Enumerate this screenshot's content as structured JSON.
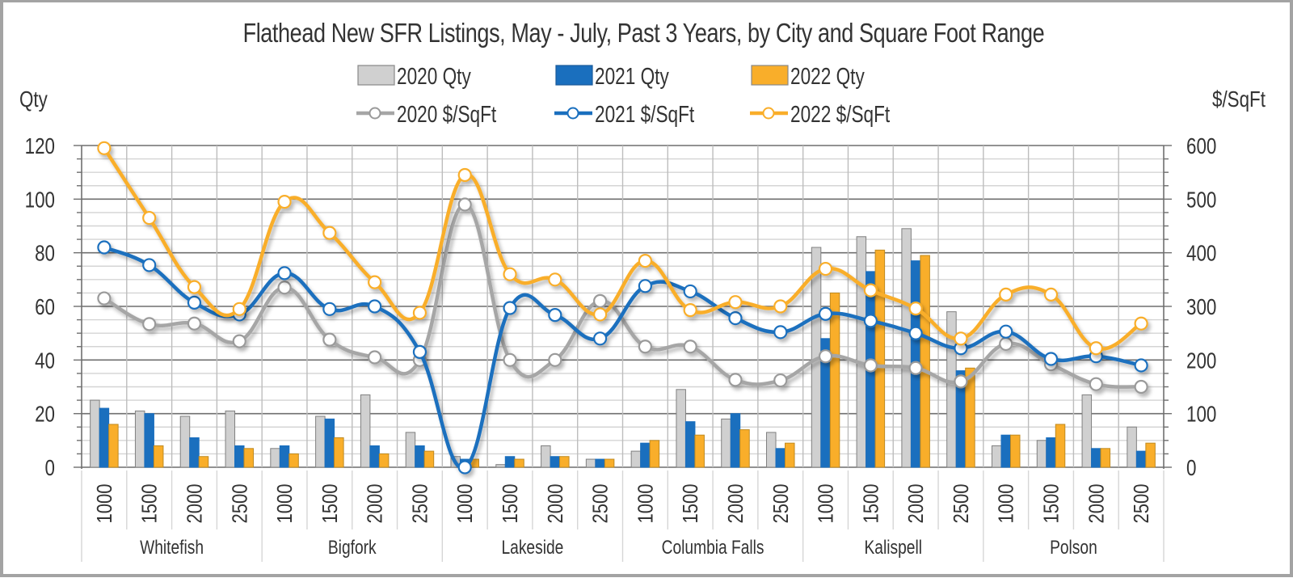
{
  "chart_data": {
    "type": "bar",
    "title": "Flathead New SFR Listings, May - July, Past 3 Years, by City and Square Foot Range",
    "ylabel": "Qty",
    "y2label": "$/SqFt",
    "ylim": [
      0,
      120
    ],
    "y2lim": [
      0,
      600
    ],
    "yticks": [
      0,
      20,
      40,
      60,
      80,
      100,
      120
    ],
    "y2ticks": [
      0,
      100,
      200,
      300,
      400,
      500,
      600
    ],
    "grid": true,
    "legend_position": "top-center",
    "groups": [
      "Whitefish",
      "Bigfork",
      "Lakeside",
      "Columbia Falls",
      "Kalispell",
      "Polson"
    ],
    "subcategories": [
      "1000",
      "1500",
      "2000",
      "2500"
    ],
    "bar_series": [
      {
        "name": "2020 Qty",
        "color": "#d0d0d0",
        "values": [
          25,
          21,
          19,
          21,
          7,
          19,
          27,
          13,
          4,
          1,
          8,
          3,
          6,
          29,
          18,
          13,
          82,
          86,
          89,
          58,
          8,
          10,
          27,
          15
        ]
      },
      {
        "name": "2021 Qty",
        "color": "#1a6fbe",
        "values": [
          22,
          20,
          11,
          8,
          8,
          18,
          8,
          8,
          3,
          4,
          4,
          3,
          9,
          17,
          20,
          7,
          48,
          73,
          77,
          36,
          12,
          11,
          7,
          6
        ]
      },
      {
        "name": "2022 Qty",
        "color": "#f9ae2a",
        "values": [
          16,
          8,
          4,
          7,
          5,
          11,
          5,
          6,
          3,
          3,
          4,
          3,
          10,
          12,
          14,
          9,
          65,
          81,
          79,
          37,
          12,
          16,
          7,
          9
        ]
      }
    ],
    "line_series": [
      {
        "name": "2020 $/SqFt",
        "color": "#a6a6a6",
        "axis": "right",
        "values": [
          315,
          267,
          268,
          235,
          335,
          238,
          205,
          200,
          490,
          200,
          200,
          310,
          225,
          225,
          163,
          162,
          207,
          190,
          185,
          160,
          230,
          192,
          155,
          150
        ]
      },
      {
        "name": "2021 $/SqFt",
        "color": "#1a6fbe",
        "axis": "right",
        "values": [
          410,
          377,
          307,
          285,
          362,
          295,
          300,
          215,
          0,
          297,
          284,
          240,
          338,
          328,
          278,
          252,
          286,
          273,
          250,
          222,
          253,
          202,
          207,
          190
        ]
      },
      {
        "name": "2022 $/SqFt",
        "color": "#f9ae2a",
        "axis": "right",
        "values": [
          595,
          465,
          336,
          295,
          495,
          437,
          345,
          288,
          545,
          360,
          350,
          285,
          385,
          293,
          308,
          300,
          370,
          330,
          296,
          240,
          322,
          322,
          222,
          268
        ]
      }
    ]
  },
  "legend": {
    "items": [
      {
        "label": "2020 Qty",
        "kind": "bar",
        "color": "#d0d0d0"
      },
      {
        "label": "2021 Qty",
        "kind": "bar",
        "color": "#1a6fbe"
      },
      {
        "label": "2022 Qty",
        "kind": "bar",
        "color": "#f9ae2a"
      },
      {
        "label": "2020 $/SqFt",
        "kind": "line",
        "color": "#a6a6a6"
      },
      {
        "label": "2021 $/SqFt",
        "kind": "line",
        "color": "#1a6fbe"
      },
      {
        "label": "2022 $/SqFt",
        "kind": "line",
        "color": "#f9ae2a"
      }
    ]
  }
}
